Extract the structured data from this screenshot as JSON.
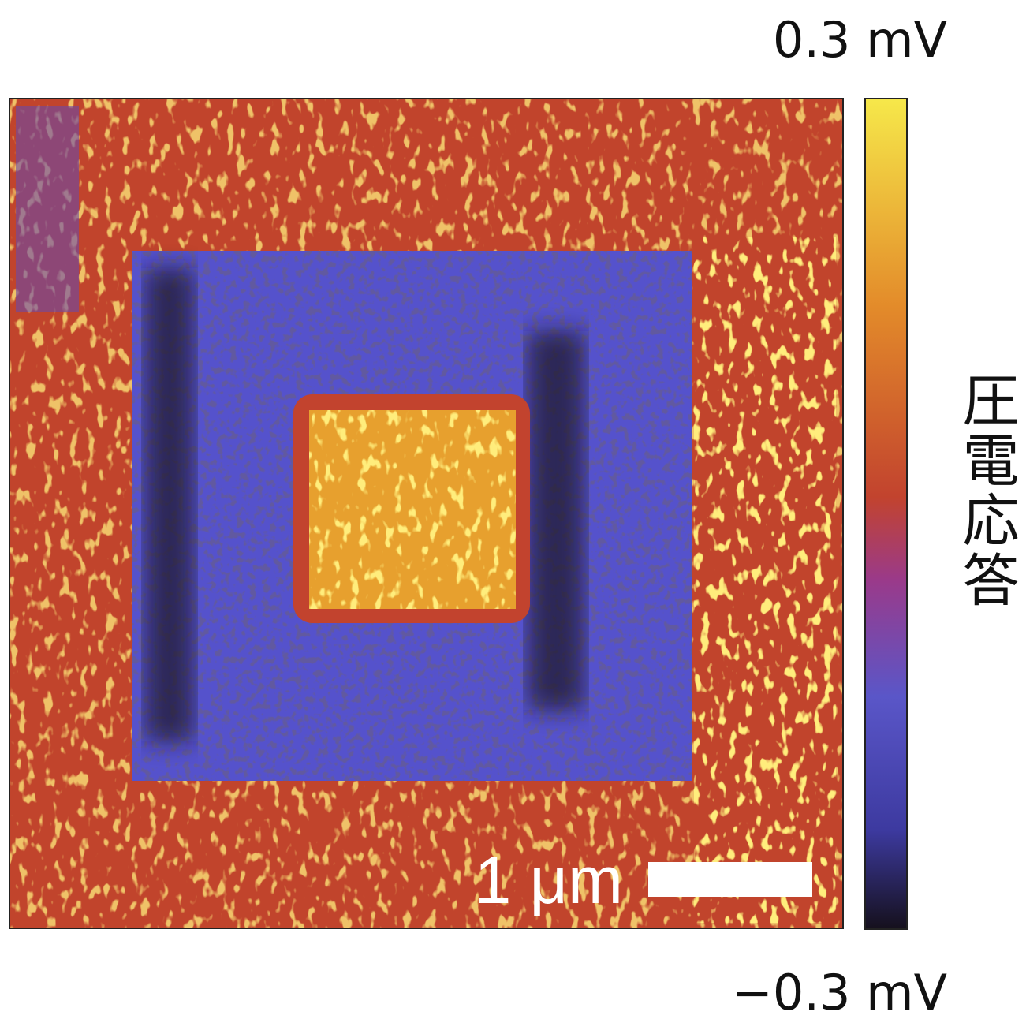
{
  "colorbar": {
    "max_label": "0.3 mV",
    "min_label": "−0.3 mV",
    "title": "圧電応答"
  },
  "scale_bar": {
    "label": "1 μm"
  }
}
